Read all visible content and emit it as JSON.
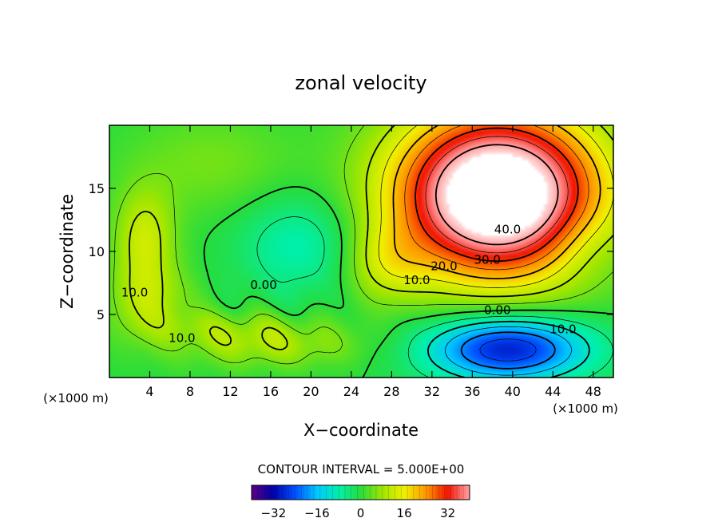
{
  "chart_data": {
    "type": "heatmap",
    "title": "zonal velocity",
    "xlabel": "X−coordinate",
    "ylabel": "Z−coordinate",
    "x_unit": "(×1000 m)",
    "y_unit": "(×1000 m)",
    "xlim": [
      0,
      50
    ],
    "ylim": [
      0,
      20
    ],
    "x_ticks": [
      4,
      8,
      12,
      16,
      20,
      24,
      28,
      32,
      36,
      40,
      44,
      48
    ],
    "y_ticks": [
      5,
      10,
      15
    ],
    "contour_interval_text": "CONTOUR INTERVAL = 5.000E+00",
    "contour_labels": [
      {
        "text": "40.0",
        "x": 39.5,
        "z": 11.8
      },
      {
        "text": "30.0",
        "x": 37.5,
        "z": 9.4
      },
      {
        "text": "20.0",
        "x": 33.2,
        "z": 8.9
      },
      {
        "text": "10.0",
        "x": 30.5,
        "z": 7.8
      },
      {
        "text": "0.00",
        "x": 15.3,
        "z": 7.4
      },
      {
        "text": "0.00",
        "x": 38.5,
        "z": 5.4
      },
      {
        "text": "10.0",
        "x": 2.5,
        "z": 6.8
      },
      {
        "text": "10.0",
        "x": 7.2,
        "z": 3.2
      },
      {
        "text": "10.0",
        "x": 45.0,
        "z": 3.9
      }
    ],
    "field_features": [
      {
        "kind": "jet_max",
        "x": 38.5,
        "z": 14.5,
        "value": 45
      },
      {
        "kind": "max",
        "x": 27.5,
        "z": 9,
        "value": 12
      },
      {
        "kind": "max",
        "x": 3.5,
        "z": 11,
        "value": 10
      },
      {
        "kind": "min",
        "x": 39.5,
        "z": 2.3,
        "value": -22
      },
      {
        "kind": "min",
        "x": 19,
        "z": 10.5,
        "value": -5
      }
    ],
    "colorbar": {
      "range": [
        -40,
        40
      ],
      "ticks": [
        "−32",
        "−16",
        "0",
        "16",
        "32"
      ]
    }
  }
}
